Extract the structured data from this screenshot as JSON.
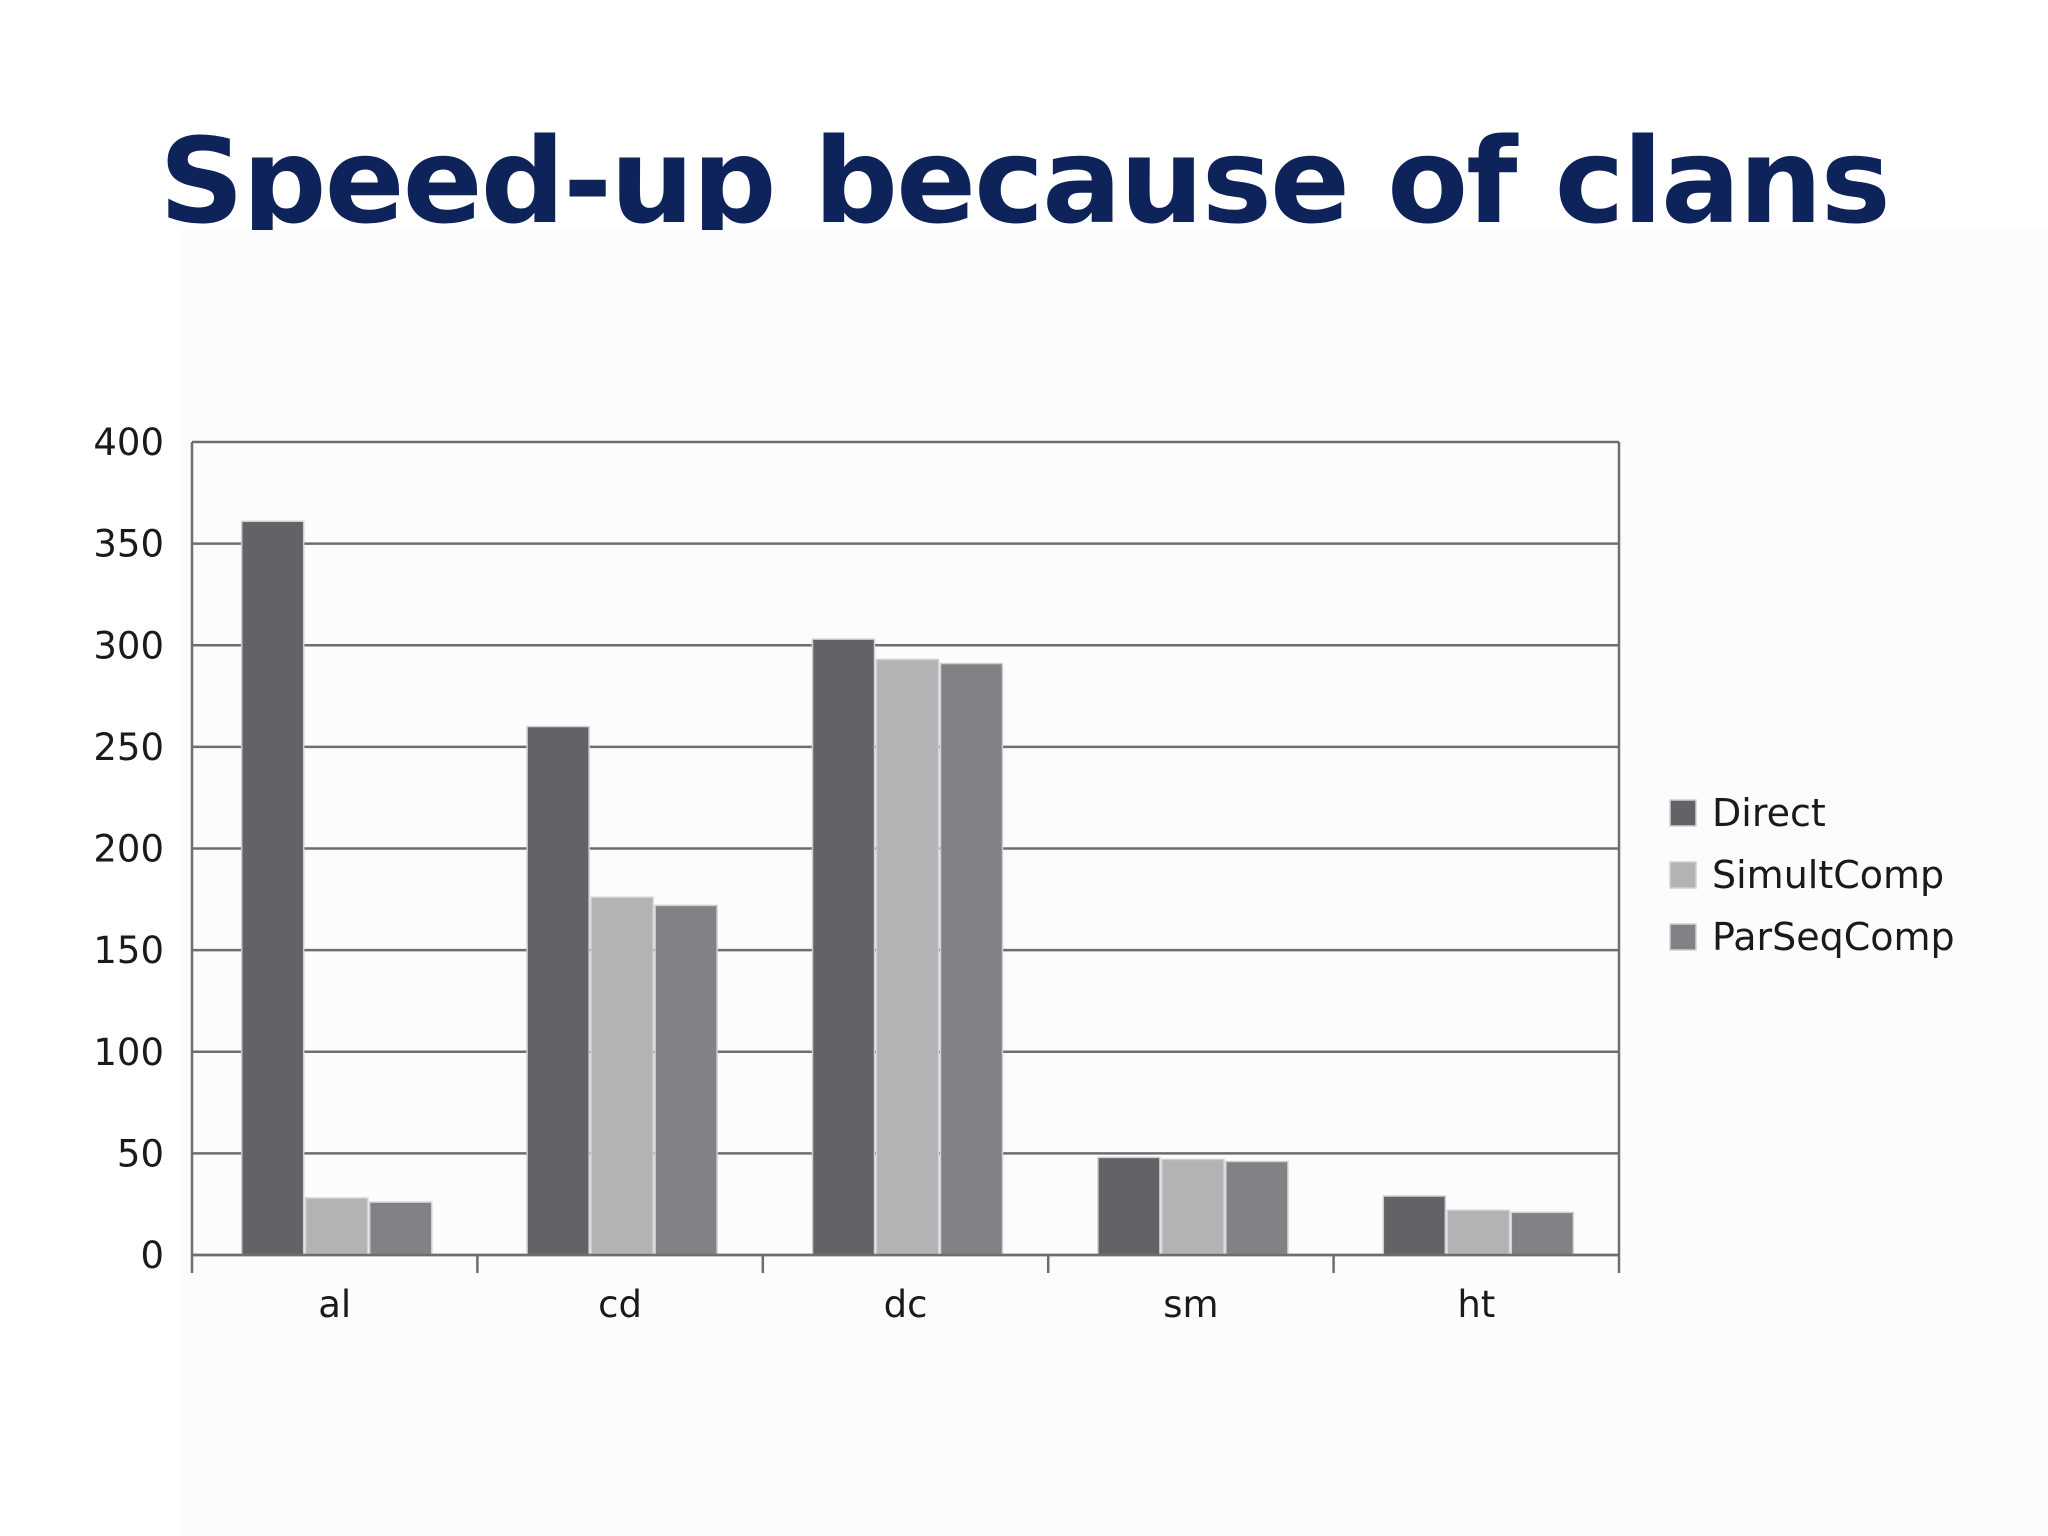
{
  "slide": {
    "title": "Speed-up because of clans"
  },
  "chart_data": {
    "type": "bar",
    "title": "",
    "xlabel": "",
    "ylabel": "",
    "categories": [
      "al",
      "cd",
      "dc",
      "sm",
      "ht"
    ],
    "ylim": [
      0,
      400
    ],
    "yticks": [
      0,
      50,
      100,
      150,
      200,
      250,
      300,
      350,
      400
    ],
    "grid": true,
    "legend_position": "right",
    "series": [
      {
        "name": "Direct",
        "color": "#646266",
        "values": [
          361,
          260,
          303,
          48,
          29
        ]
      },
      {
        "name": "SimultComp",
        "color": "#b4b2b5",
        "values": [
          28,
          176,
          293,
          47,
          22
        ]
      },
      {
        "name": "ParSeqComp",
        "color": "#838185",
        "values": [
          26,
          172,
          291,
          46,
          21
        ]
      }
    ]
  }
}
